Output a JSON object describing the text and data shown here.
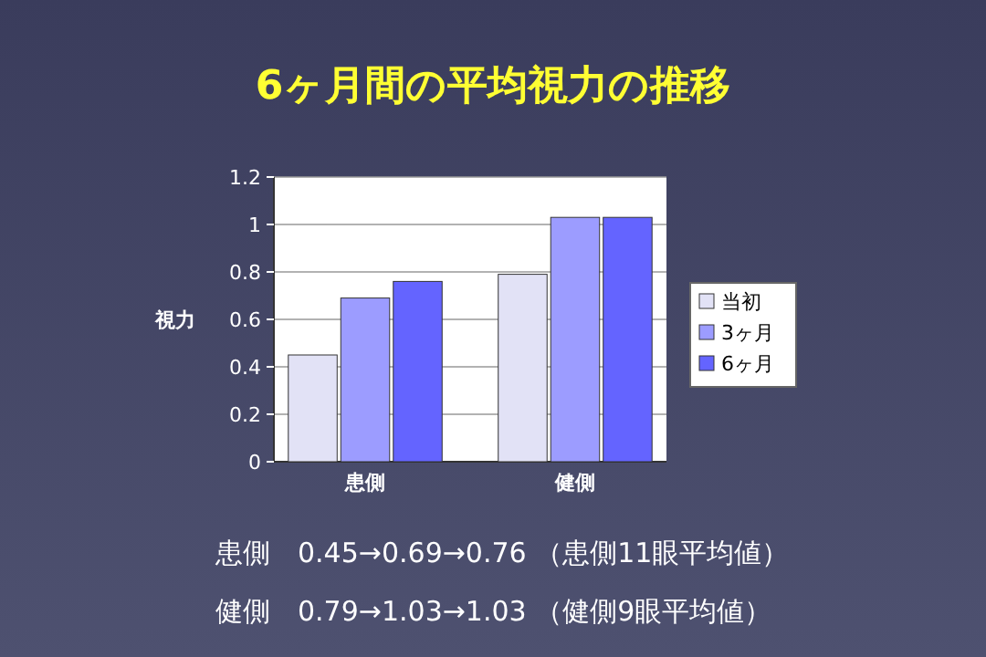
{
  "chart_data": {
    "type": "bar",
    "title": "6ヶ月間の平均視力の推移",
    "ylabel": "視力",
    "categories": [
      "患側",
      "健側"
    ],
    "series": [
      {
        "name": "当初",
        "color": "#e2e2f6",
        "values": [
          0.45,
          0.79
        ]
      },
      {
        "name": "3ヶ月",
        "color": "#9c9cff",
        "values": [
          0.69,
          1.03
        ]
      },
      {
        "name": "6ヶ月",
        "color": "#6464ff",
        "values": [
          0.76,
          1.03
        ]
      }
    ],
    "ylim": [
      0,
      1.2
    ],
    "yticks": [
      0,
      0.2,
      0.4,
      0.6,
      0.8,
      1,
      1.2
    ],
    "grid": "y",
    "legend": "right",
    "annotations": [
      "患側　0.45→0.69→0.76 （患側11眼平均値）",
      "健側　0.79→1.03→1.03 （健側9眼平均値）"
    ]
  }
}
